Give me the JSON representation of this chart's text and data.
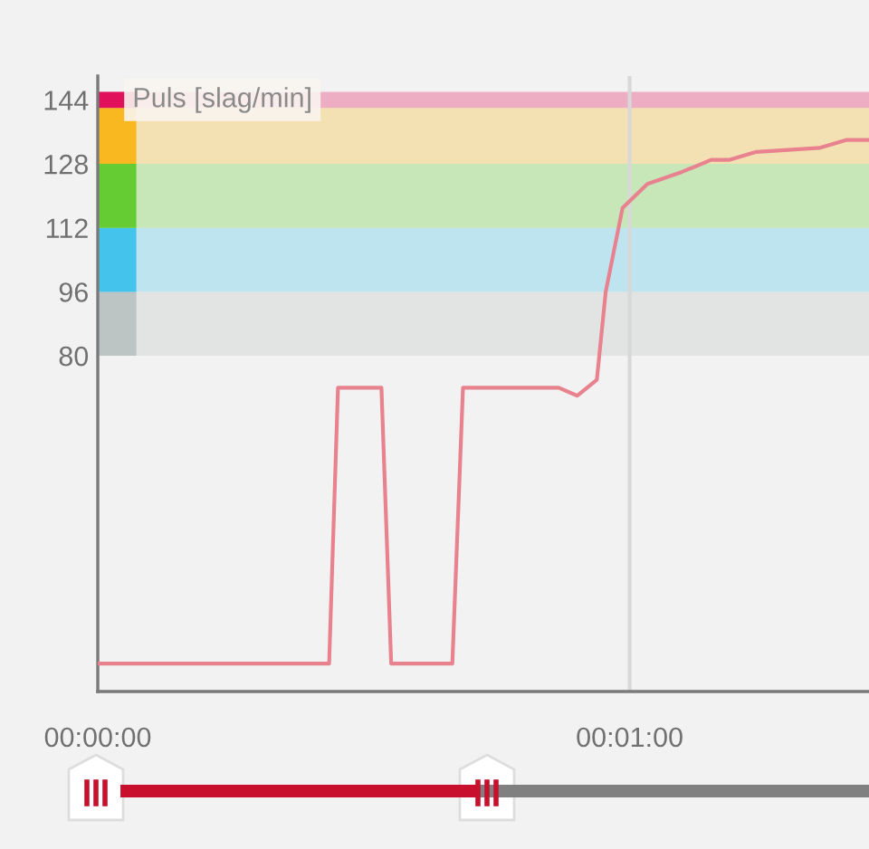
{
  "chart_data": {
    "type": "line",
    "ylabel": "Puls [slag/min]",
    "x": [
      0,
      26.1,
      27.1,
      32.0,
      33.1,
      40.0,
      41.2,
      52.0,
      54.1,
      56.3,
      57.3,
      59.2,
      62.0,
      65.9,
      69.2,
      71.2,
      74.3,
      81.4,
      84.5,
      86.9
    ],
    "series": [
      {
        "color": "#e8828f",
        "values": [
          3,
          3,
          72,
          72,
          3,
          3,
          72,
          72,
          70,
          74,
          96,
          117,
          123,
          126,
          129,
          129,
          131,
          132,
          134,
          134
        ]
      }
    ],
    "xlim": [
      0,
      87
    ],
    "xticks": [
      {
        "value": 0,
        "label": "00:00:00"
      },
      {
        "value": 60,
        "label": "00:01:00"
      }
    ],
    "ylim": [
      -4,
      150
    ],
    "yticks": [
      80,
      96,
      112,
      128,
      144
    ],
    "bands": [
      {
        "axis": "y",
        "from": 80,
        "to": 96,
        "color": "#bcc4c4"
      },
      {
        "axis": "y",
        "from": 96,
        "to": 112,
        "color": "#44c4ec"
      },
      {
        "axis": "y",
        "from": 112,
        "to": 128,
        "color": "#66cc33"
      },
      {
        "axis": "y",
        "from": 128,
        "to": 142,
        "color": "#f9b820"
      },
      {
        "axis": "y",
        "from": 142,
        "to": 146,
        "color": "#e0105a"
      }
    ],
    "grid": "x",
    "line_style": "solid",
    "marker": "none"
  }
}
